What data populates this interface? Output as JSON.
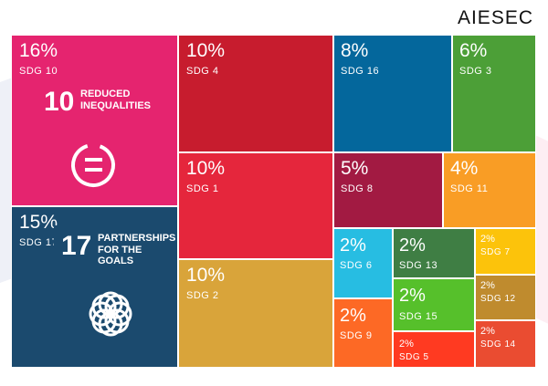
{
  "brand": "AIESEC",
  "colors": {
    "sdg10": "#e5246f",
    "sdg17": "#1b4a6e",
    "sdg4": "#c71c2e",
    "sdg1": "#e5263c",
    "sdg2": "#d9a43a",
    "sdg16": "#04679c",
    "sdg3": "#4c9f37",
    "sdg8": "#a21a42",
    "sdg11": "#f99d25",
    "sdg6": "#27bde2",
    "sdg13": "#3f7e44",
    "sdg7": "#fcc30b",
    "sdg15": "#56c02b",
    "sdg12": "#bf8b2e",
    "sdg9": "#fd6925",
    "sdg5": "#ff3a21",
    "sdg14": "#ea4c31"
  },
  "chart_data": {
    "type": "treemap",
    "items": [
      {
        "pct": "16%",
        "label": "SDG 10",
        "value": 16
      },
      {
        "pct": "15%",
        "label": "SDG 17",
        "value": 15
      },
      {
        "pct": "10%",
        "label": "SDG 4",
        "value": 10
      },
      {
        "pct": "10%",
        "label": "SDG 1",
        "value": 10
      },
      {
        "pct": "10%",
        "label": "SDG 2",
        "value": 10
      },
      {
        "pct": "8%",
        "label": "SDG 16",
        "value": 8
      },
      {
        "pct": "6%",
        "label": "SDG 3",
        "value": 6
      },
      {
        "pct": "5%",
        "label": "SDG 8",
        "value": 5
      },
      {
        "pct": "4%",
        "label": "SDG 11",
        "value": 4
      },
      {
        "pct": "2%",
        "label": "SDG 6",
        "value": 2
      },
      {
        "pct": "2%",
        "label": "SDG 13",
        "value": 2
      },
      {
        "pct": "2%",
        "label": "SDG 7",
        "value": 2
      },
      {
        "pct": "2%",
        "label": "SDG 15",
        "value": 2
      },
      {
        "pct": "2%",
        "label": "SDG 12",
        "value": 2
      },
      {
        "pct": "2%",
        "label": "SDG 9",
        "value": 2
      },
      {
        "pct": "2%",
        "label": "SDG 5",
        "value": 2
      },
      {
        "pct": "2%",
        "label": "SDG 14",
        "value": 2
      }
    ]
  },
  "badges": {
    "sdg10": {
      "number": "10",
      "line1": "REDUCED",
      "line2": "INEQUALITIES",
      "icon": "reduced-inequalities-icon"
    },
    "sdg17": {
      "number": "17",
      "line1": "PARTNERSHIPS",
      "line2": "FOR THE GOALS",
      "icon": "partnerships-rings-icon"
    }
  }
}
